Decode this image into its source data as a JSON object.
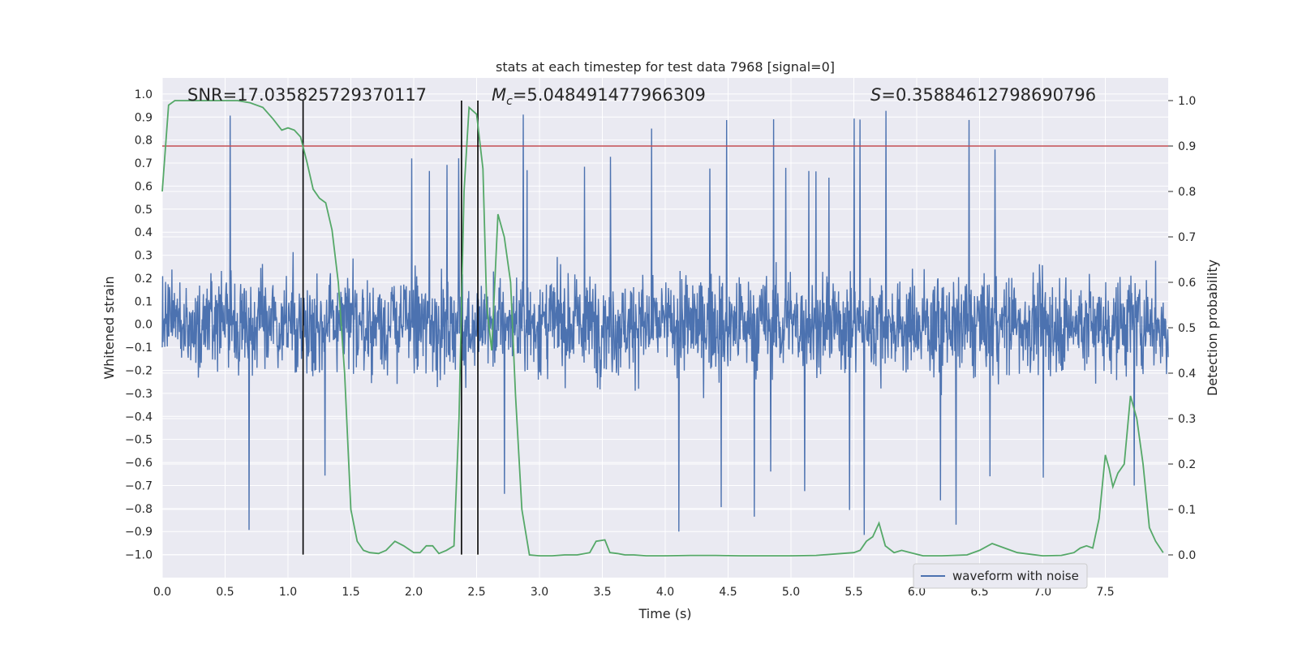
{
  "chart_data": {
    "type": "line",
    "title": "stats at each timestep for test data 7968 [signal=0]",
    "xlabel": "Time (s)",
    "ylabel_left": "Whitened strain",
    "ylabel_right": "Detection probability",
    "xlim": [
      0,
      8
    ],
    "ylim_left": [
      -1.1,
      1.07
    ],
    "ylim_right": [
      -0.05,
      1.05
    ],
    "x_ticks": [
      "0.0",
      "0.5",
      "1.0",
      "1.5",
      "2.0",
      "2.5",
      "3.0",
      "3.5",
      "4.0",
      "4.5",
      "5.0",
      "5.5",
      "6.0",
      "6.5",
      "7.0",
      "7.5"
    ],
    "y_ticks_left": [
      "1.0",
      "0.9",
      "0.8",
      "0.7",
      "0.6",
      "0.5",
      "0.4",
      "0.3",
      "0.2",
      "0.1",
      "0.0",
      "-0.1",
      "-0.2",
      "-0.3",
      "-0.4",
      "-0.5",
      "-0.6",
      "-0.7",
      "-0.8",
      "-0.9",
      "-1.0"
    ],
    "y_ticks_right": [
      "1.0",
      "0.9",
      "0.8",
      "0.7",
      "0.6",
      "0.5",
      "0.4",
      "0.3",
      "0.2",
      "0.1",
      "0.0"
    ],
    "grid": true,
    "legend_position": "lower-right",
    "annotations": {
      "snr": "SNR=17.035825729370117",
      "mc_symbol": "M",
      "mc_sub": "c",
      "mc_value": "=5.048491477966309",
      "s_symbol": "S",
      "s_value": "=0.35884612798690796"
    },
    "threshold": {
      "value": 0.9,
      "axis": "right",
      "color": "#c44e52"
    },
    "vertical_markers": {
      "x": [
        1.12,
        2.38,
        2.51
      ],
      "color": "#000000"
    },
    "series": [
      {
        "name": "waveform with noise",
        "axis": "left",
        "color": "#4c72b0",
        "description": "whitened noisy strain, roughly ±0.5 with spikes up to ±0.95",
        "envelope": {
          "typical_amplitude": 0.5,
          "max_amplitude": 0.95
        }
      },
      {
        "axis": "right",
        "color": "#55a868",
        "x": [
          0.0,
          0.05,
          0.1,
          0.2,
          0.3,
          0.4,
          0.5,
          0.6,
          0.7,
          0.8,
          0.88,
          0.95,
          1.0,
          1.05,
          1.1,
          1.15,
          1.2,
          1.25,
          1.3,
          1.35,
          1.4,
          1.45,
          1.5,
          1.55,
          1.6,
          1.65,
          1.72,
          1.78,
          1.85,
          1.92,
          2.0,
          2.05,
          2.1,
          2.15,
          2.2,
          2.26,
          2.32,
          2.36,
          2.4,
          2.44,
          2.5,
          2.55,
          2.58,
          2.62,
          2.67,
          2.72,
          2.77,
          2.81,
          2.86,
          2.92,
          3.0,
          3.1,
          3.2,
          3.3,
          3.4,
          3.45,
          3.52,
          3.56,
          3.62,
          3.68,
          3.75,
          3.85,
          4.0,
          4.2,
          4.4,
          4.6,
          4.8,
          5.0,
          5.2,
          5.4,
          5.5,
          5.55,
          5.6,
          5.65,
          5.7,
          5.75,
          5.82,
          5.88,
          5.95,
          6.05,
          6.2,
          6.4,
          6.5,
          6.6,
          6.7,
          6.8,
          7.0,
          7.15,
          7.25,
          7.3,
          7.35,
          7.4,
          7.45,
          7.5,
          7.53,
          7.56,
          7.6,
          7.65,
          7.7,
          7.75,
          7.8,
          7.85,
          7.9,
          7.96
        ],
        "values": [
          0.8,
          0.99,
          1.0,
          1.0,
          1.0,
          1.0,
          1.0,
          1.0,
          0.995,
          0.985,
          0.96,
          0.935,
          0.94,
          0.935,
          0.92,
          0.865,
          0.805,
          0.785,
          0.775,
          0.715,
          0.6,
          0.4,
          0.1,
          0.03,
          0.01,
          0.005,
          0.003,
          0.01,
          0.03,
          0.02,
          0.005,
          0.005,
          0.02,
          0.02,
          0.003,
          0.01,
          0.02,
          0.3,
          0.8,
          0.985,
          0.97,
          0.85,
          0.55,
          0.45,
          0.75,
          0.7,
          0.6,
          0.35,
          0.1,
          0.0,
          -0.002,
          -0.002,
          0.0,
          0.0,
          0.005,
          0.03,
          0.033,
          0.005,
          0.003,
          0.0,
          0.0,
          -0.002,
          -0.002,
          -0.001,
          -0.001,
          -0.002,
          -0.002,
          -0.002,
          -0.001,
          0.003,
          0.005,
          0.01,
          0.03,
          0.04,
          0.07,
          0.02,
          0.005,
          0.01,
          0.005,
          -0.002,
          -0.002,
          0.0,
          0.01,
          0.025,
          0.015,
          0.005,
          -0.002,
          -0.001,
          0.005,
          0.015,
          0.02,
          0.015,
          0.08,
          0.22,
          0.19,
          0.15,
          0.18,
          0.2,
          0.35,
          0.3,
          0.2,
          0.06,
          0.03,
          0.005
        ]
      }
    ]
  }
}
